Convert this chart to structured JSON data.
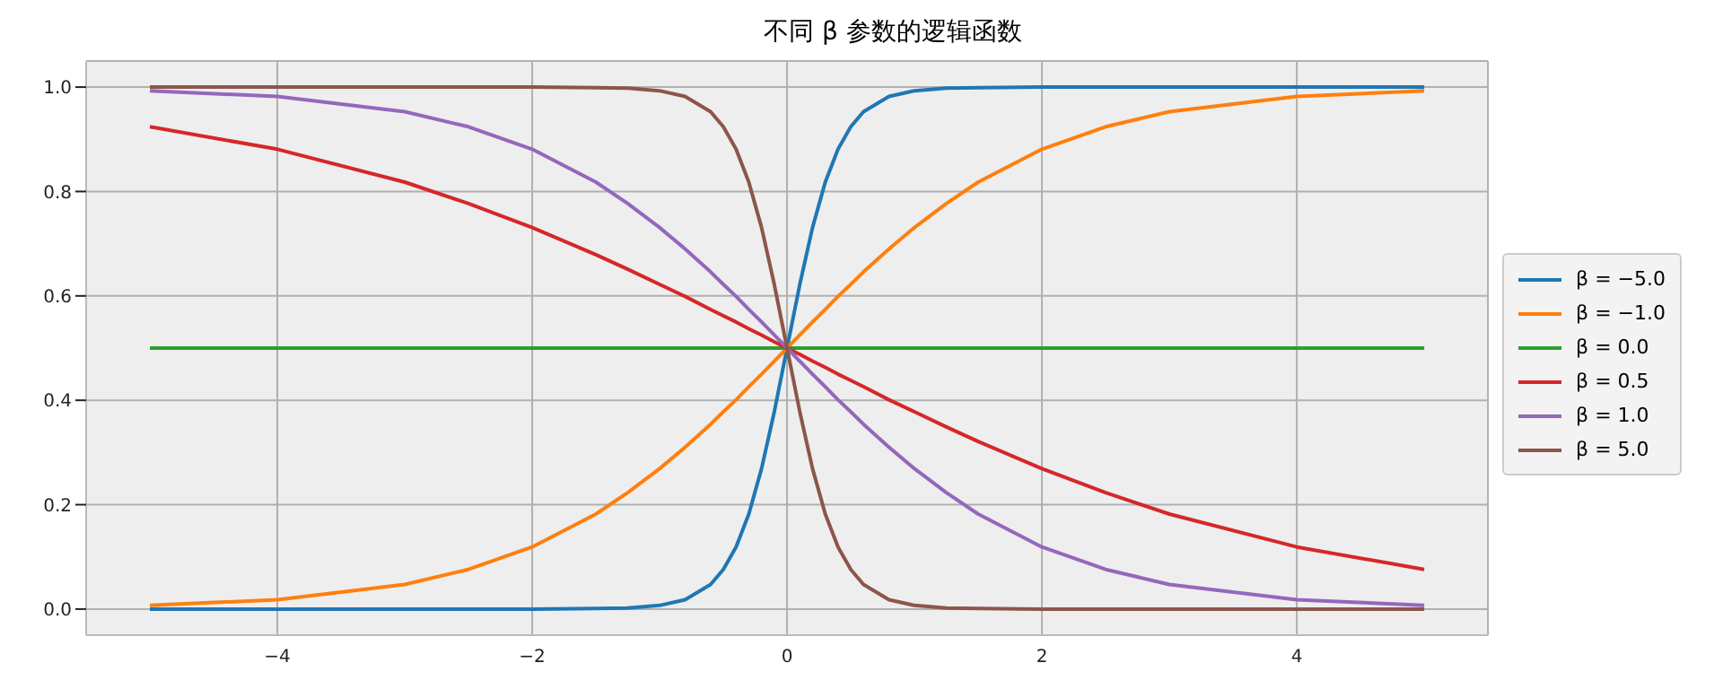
{
  "chart_data": {
    "type": "line",
    "title": "不同 β 参数的逻辑函数",
    "x": [
      -5,
      -4,
      -3,
      -2.5,
      -2,
      -1.5,
      -1.25,
      -1,
      -0.8,
      -0.6,
      -0.5,
      -0.4,
      -0.3,
      -0.2,
      -0.1,
      0,
      0.1,
      0.2,
      0.3,
      0.4,
      0.5,
      0.6,
      0.8,
      1,
      1.25,
      1.5,
      2,
      2.5,
      3,
      4,
      5
    ],
    "series": [
      {
        "name": "β = −5.0",
        "color": "#1f77b4",
        "values": [
          0,
          0,
          0,
          0,
          0,
          0.001,
          0.002,
          0.007,
          0.018,
          0.047,
          0.076,
          0.119,
          0.182,
          0.269,
          0.378,
          0.5,
          0.622,
          0.731,
          0.818,
          0.881,
          0.924,
          0.953,
          0.982,
          0.993,
          0.998,
          0.999,
          1,
          1,
          1,
          1,
          1
        ]
      },
      {
        "name": "β = −1.0",
        "color": "#ff7f0e",
        "values": [
          0.007,
          0.018,
          0.047,
          0.076,
          0.119,
          0.182,
          0.223,
          0.269,
          0.31,
          0.354,
          0.378,
          0.401,
          0.426,
          0.45,
          0.475,
          0.5,
          0.525,
          0.55,
          0.574,
          0.599,
          0.622,
          0.646,
          0.69,
          0.731,
          0.777,
          0.818,
          0.881,
          0.924,
          0.953,
          0.982,
          0.993
        ]
      },
      {
        "name": "β = 0.0",
        "color": "#2ca02c",
        "values": [
          0.5,
          0.5,
          0.5,
          0.5,
          0.5,
          0.5,
          0.5,
          0.5,
          0.5,
          0.5,
          0.5,
          0.5,
          0.5,
          0.5,
          0.5,
          0.5,
          0.5,
          0.5,
          0.5,
          0.5,
          0.5,
          0.5,
          0.5,
          0.5,
          0.5,
          0.5,
          0.5,
          0.5,
          0.5,
          0.5,
          0.5
        ]
      },
      {
        "name": "β = 0.5",
        "color": "#d62728",
        "values": [
          0.924,
          0.881,
          0.818,
          0.777,
          0.731,
          0.679,
          0.651,
          0.622,
          0.599,
          0.574,
          0.562,
          0.55,
          0.537,
          0.525,
          0.512,
          0.5,
          0.488,
          0.475,
          0.463,
          0.45,
          0.438,
          0.426,
          0.401,
          0.378,
          0.349,
          0.321,
          0.269,
          0.223,
          0.182,
          0.119,
          0.076
        ]
      },
      {
        "name": "β = 1.0",
        "color": "#9467bd",
        "values": [
          0.993,
          0.982,
          0.953,
          0.924,
          0.881,
          0.818,
          0.777,
          0.731,
          0.69,
          0.646,
          0.622,
          0.599,
          0.574,
          0.55,
          0.525,
          0.5,
          0.475,
          0.45,
          0.426,
          0.401,
          0.378,
          0.354,
          0.31,
          0.269,
          0.223,
          0.182,
          0.119,
          0.076,
          0.047,
          0.018,
          0.007
        ]
      },
      {
        "name": "β = 5.0",
        "color": "#8c564b",
        "values": [
          1,
          1,
          1,
          1,
          1,
          0.999,
          0.998,
          0.993,
          0.982,
          0.953,
          0.924,
          0.881,
          0.818,
          0.731,
          0.622,
          0.5,
          0.378,
          0.269,
          0.182,
          0.119,
          0.076,
          0.047,
          0.018,
          0.007,
          0.002,
          0.001,
          0,
          0,
          0,
          0,
          0
        ]
      }
    ],
    "xlim": [
      -5.5,
      5.5
    ],
    "xticks": [
      {
        "value": -4,
        "label": "−4"
      },
      {
        "value": -2,
        "label": "−2"
      },
      0,
      2,
      4
    ],
    "ylim": [
      -0.05,
      1.05
    ],
    "yticks": [
      {
        "value": 0,
        "label": "0.0"
      },
      {
        "value": 0.2,
        "label": "0.2"
      },
      {
        "value": 0.4,
        "label": "0.4"
      },
      {
        "value": 0.6,
        "label": "0.6"
      },
      {
        "value": 0.8,
        "label": "0.8"
      },
      {
        "value": 1,
        "label": "1.0"
      }
    ],
    "grid": true,
    "legend": "right",
    "marker": "none",
    "line_style": "solid"
  }
}
